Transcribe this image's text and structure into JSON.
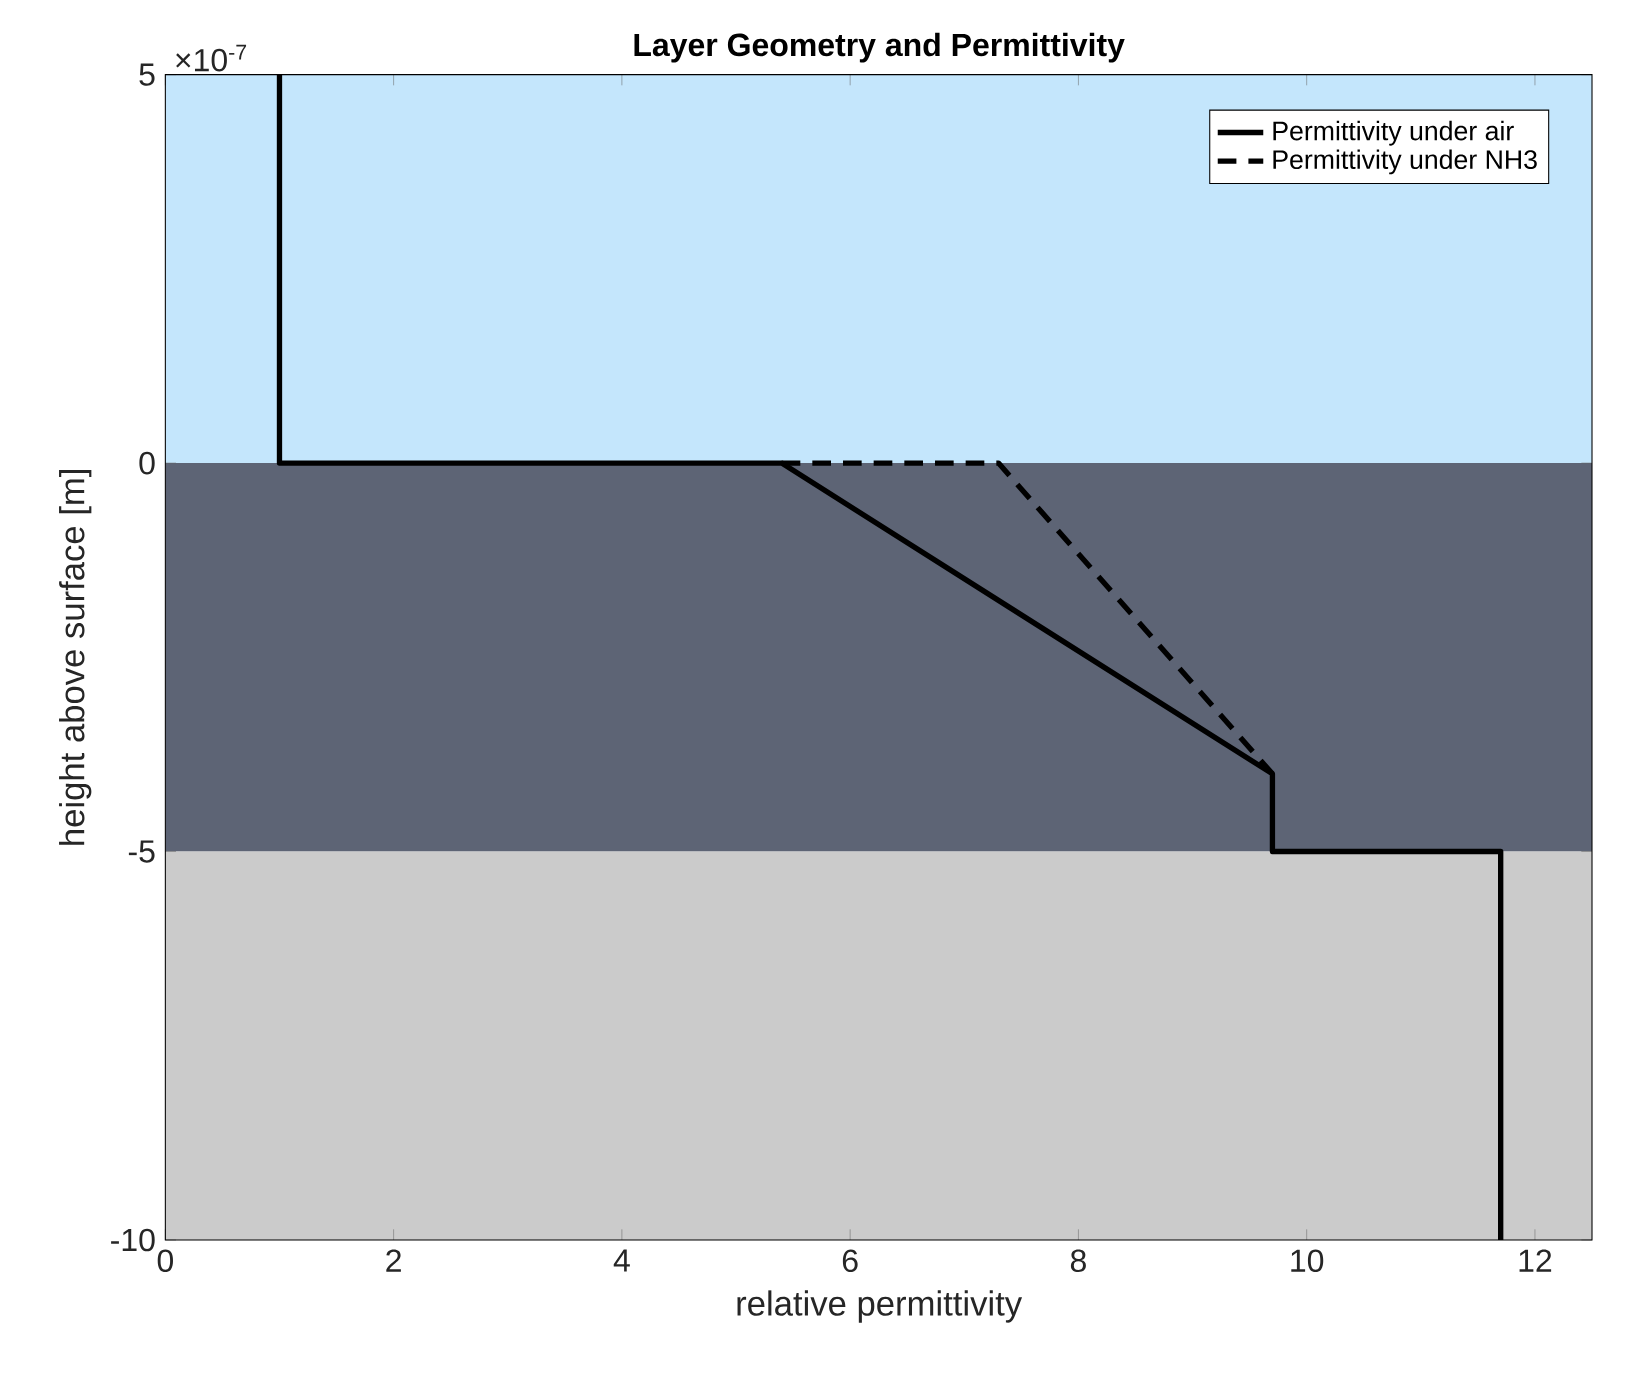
{
  "chart_data": {
    "type": "line",
    "title": "Layer Geometry and Permittivity",
    "xlabel": "relative permittivity",
    "ylabel": "height above surface [m]",
    "xlim": [
      0,
      12.5
    ],
    "xticks": [
      0,
      2,
      4,
      6,
      8,
      10,
      12
    ],
    "ylim": [
      -10,
      5
    ],
    "yticks": [
      {
        "value": -10,
        "label": "-10"
      },
      {
        "value": -5,
        "label": "-5"
      },
      0,
      5
    ],
    "annotations": [
      "×10$^{-7}$"
    ],
    "bands": [
      {
        "axis": "y",
        "from": 0,
        "to": 5,
        "color": "#c4e6fc"
      },
      {
        "axis": "y",
        "from": -5,
        "to": 0,
        "color": "#5d6475"
      },
      {
        "axis": "y",
        "from": -10,
        "to": -5,
        "color": "#cbcbcb"
      }
    ],
    "legend": "top right",
    "marker": "none",
    "series": [
      {
        "name": "Permittivity under air",
        "color": "#000000",
        "line_style": "solid",
        "x": [
          1,
          1,
          5.4,
          9.7,
          9.7,
          11.7,
          11.7
        ],
        "values": [
          5,
          0,
          0,
          -4,
          -5,
          -5,
          -10
        ]
      },
      {
        "name": "Permittivity under NH3",
        "color": "#000000",
        "line_style": "dashed",
        "x": [
          5.4,
          7.3,
          9.7
        ],
        "values": [
          0,
          0,
          -4
        ]
      }
    ]
  }
}
